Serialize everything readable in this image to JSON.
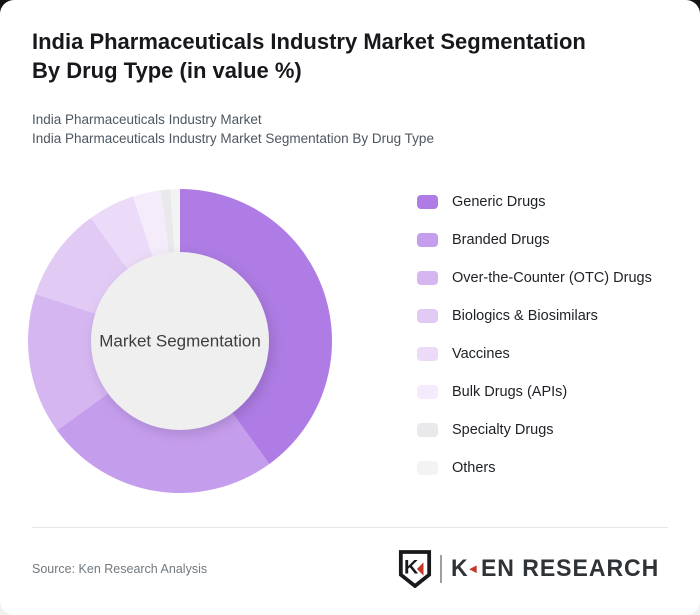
{
  "title_lines": [
    "India Pharmaceuticals Industry Market Segmentation",
    "By Drug Type (in value %)"
  ],
  "subtitle_line1": "India Pharmaceuticals Industry Market",
  "subtitle_line2": "India Pharmaceuticals Industry Market Segmentation By Drug Type",
  "chart_data": {
    "type": "pie",
    "variant": "donut",
    "center_label": "Market Segmentation",
    "unit": "% of value",
    "categories": [
      "Generic Drugs",
      "Branded Drugs",
      "Over-the-Counter (OTC) Drugs",
      "Biologics & Biosimilars",
      "Vaccines",
      "Bulk Drugs (APIs)",
      "Specialty Drugs",
      "Others"
    ],
    "values": [
      40,
      25,
      15,
      10,
      5,
      3,
      1,
      1
    ],
    "colors": [
      "#ae7ce4",
      "#c59ded",
      "#d5b6f1",
      "#e1cbf5",
      "#ebdaf8",
      "#f4ecfb",
      "#e9e8ea",
      "#f4f3f4"
    ],
    "start_angle_deg": 0,
    "direction": "clockwise",
    "legend_position": "right",
    "center_fill": "#f0eff0",
    "center_text_color": "#3d3d3d"
  },
  "footer": {
    "source_label": "Source: Ken Research Analysis",
    "brand": {
      "shield_letter": "K",
      "wordmark_k": "K",
      "wordmark_rest": "EN RESEARCH",
      "accent_color": "#c0392b"
    }
  }
}
